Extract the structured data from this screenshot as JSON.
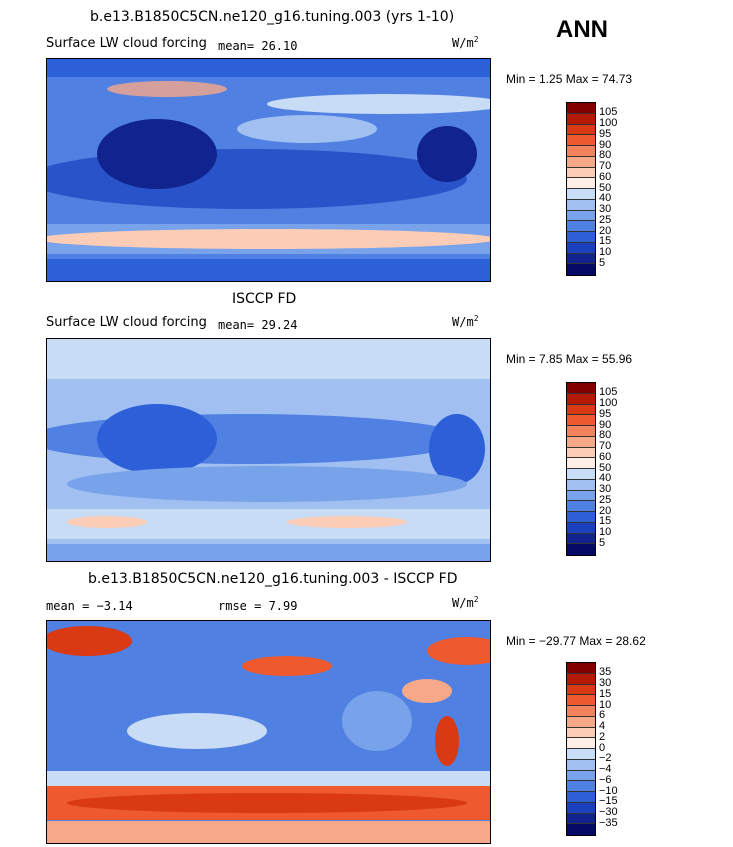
{
  "season": "ANN",
  "panels": [
    {
      "title": "b.e13.B1850C5CN.ne120_g16.tuning.003 (yrs 1-10)",
      "field": "Surface LW cloud forcing",
      "stat": "mean=   26.10",
      "units": "W/m",
      "units_exp": "2",
      "minmax": "Min =    1.25 Max =  74.73",
      "levels": [
        "105",
        "100",
        "95",
        "90",
        "80",
        "70",
        "60",
        "50",
        "40",
        "30",
        "25",
        "20",
        "15",
        "10",
        "5"
      ]
    },
    {
      "title": "ISCCP FD",
      "field": "Surface LW cloud forcing",
      "stat": "mean=   29.24",
      "units": "W/m",
      "units_exp": "2",
      "minmax": "Min =    7.85 Max =  55.96",
      "levels": [
        "105",
        "100",
        "95",
        "90",
        "80",
        "70",
        "60",
        "50",
        "40",
        "30",
        "25",
        "20",
        "15",
        "10",
        "5"
      ]
    },
    {
      "title": "b.e13.B1850C5CN.ne120_g16.tuning.003 - ISCCP FD",
      "field": "mean =  −3.14",
      "stat": "rmse =    7.99",
      "units": "W/m",
      "units_exp": "2",
      "minmax": "Min = −29.77 Max =  28.62",
      "levels": [
        "35",
        "30",
        "15",
        "10",
        "6",
        "4",
        "2",
        "0",
        "−2",
        "−4",
        "−6",
        "−10",
        "−15",
        "−30",
        "−35"
      ]
    }
  ],
  "colors": {
    "scale": [
      "#800000",
      "#b31a00",
      "#d93a14",
      "#ee5a2e",
      "#f2825c",
      "#f6a889",
      "#fbcdb6",
      "#fdeee6",
      "#c9dcf6",
      "#a1c0f1",
      "#78a2ea",
      "#4f80e2",
      "#2c5fd8",
      "#1a40bd",
      "#10238f",
      "#060a66"
    ]
  }
}
